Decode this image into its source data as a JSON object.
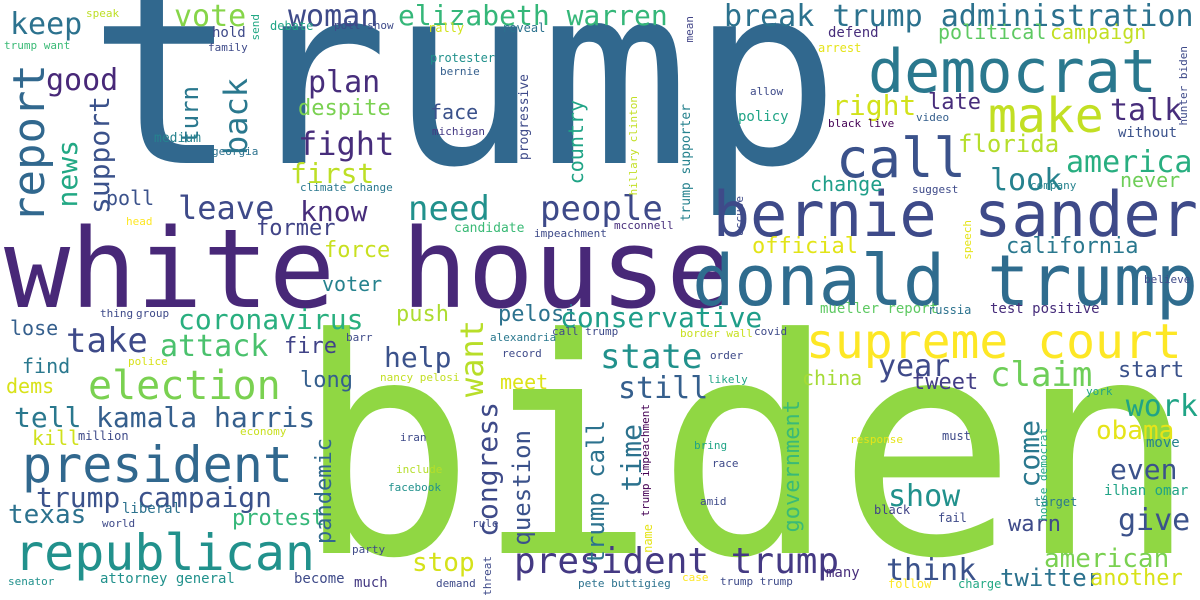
{
  "words": {
    "trump": {
      "text": "trump",
      "color": "#31688e"
    },
    "biden": {
      "text": "biden",
      "color": "#90d743"
    },
    "white_house": {
      "text": "white house",
      "color": "#482878"
    },
    "donald_trump": {
      "text": "donald trump",
      "color": "#2f6c8e"
    },
    "bernie_sander": {
      "text": "bernie sander",
      "color": "#3e4a89"
    },
    "democrat": {
      "text": "democrat",
      "color": "#2a788e"
    },
    "supreme_court": {
      "text": "supreme court",
      "color": "#fde725"
    },
    "republican": {
      "text": "republican",
      "color": "#21918c"
    },
    "president": {
      "text": "president",
      "color": "#31688e"
    },
    "call": {
      "text": "call",
      "color": "#3b528b"
    },
    "make": {
      "text": "make",
      "color": "#c2df23"
    },
    "election": {
      "text": "election",
      "color": "#7ad151"
    },
    "president_trump": {
      "text": "president trump",
      "color": "#443983"
    },
    "break": {
      "text": "break",
      "color": "#3b528b"
    },
    "trump_administration": {
      "text": "trump administration",
      "color": "#2c728e"
    },
    "elizabeth_warren": {
      "text": "elizabeth warren",
      "color": "#35b779"
    },
    "report": {
      "text": "report",
      "color": "#31688e"
    },
    "keep": {
      "text": "keep",
      "color": "#2c728e"
    },
    "woman": {
      "text": "woman",
      "color": "#3e4a89"
    },
    "vote": {
      "text": "vote",
      "color": "#86d549"
    },
    "good": {
      "text": "good",
      "color": "#482878"
    },
    "plan": {
      "text": "plan",
      "color": "#472d7b"
    },
    "back": {
      "text": "back",
      "color": "#2a788e"
    },
    "turn": {
      "text": "turn",
      "color": "#2a788e"
    },
    "news": {
      "text": "news",
      "color": "#22a884"
    },
    "support": {
      "text": "support",
      "color": "#3b528b"
    },
    "fight": {
      "text": "fight",
      "color": "#472d7b"
    },
    "first": {
      "text": "first",
      "color": "#bddf26"
    },
    "despite": {
      "text": "despite",
      "color": "#7ad151"
    },
    "right": {
      "text": "right",
      "color": "#d2e21b"
    },
    "late": {
      "text": "late",
      "color": "#472d7b"
    },
    "talk": {
      "text": "talk",
      "color": "#472d7b"
    },
    "florida": {
      "text": "florida",
      "color": "#b5de2b"
    },
    "america": {
      "text": "america",
      "color": "#28ae80"
    },
    "never": {
      "text": "never",
      "color": "#6ece58"
    },
    "look": {
      "text": "look",
      "color": "#26828e"
    },
    "change": {
      "text": "change",
      "color": "#1f9e89"
    },
    "poll": {
      "text": "poll",
      "color": "#3b528b"
    },
    "leave": {
      "text": "leave",
      "color": "#3e4a89"
    },
    "know": {
      "text": "know",
      "color": "#472d7b"
    },
    "need": {
      "text": "need",
      "color": "#21918c"
    },
    "people": {
      "text": "people",
      "color": "#3e4a89"
    },
    "former": {
      "text": "former",
      "color": "#414487"
    },
    "force": {
      "text": "force",
      "color": "#c8e020"
    },
    "official": {
      "text": "official",
      "color": "#e2e418"
    },
    "california": {
      "text": "california",
      "color": "#2a788e"
    },
    "voter": {
      "text": "voter",
      "color": "#26828e"
    },
    "coronavirus": {
      "text": "coronavirus",
      "color": "#29af7f"
    },
    "push": {
      "text": "push",
      "color": "#addc30"
    },
    "pelosi": {
      "text": "pelosi",
      "color": "#2c728e"
    },
    "conservative": {
      "text": "conservative",
      "color": "#1f9e89"
    },
    "take": {
      "text": "take",
      "color": "#3e4a89"
    },
    "attack": {
      "text": "attack",
      "color": "#4ac16d"
    },
    "fire": {
      "text": "fire",
      "color": "#404387"
    },
    "help": {
      "text": "help",
      "color": "#3b528b"
    },
    "want": {
      "text": "want",
      "color": "#b8de29"
    },
    "state": {
      "text": "state",
      "color": "#21918c"
    },
    "still": {
      "text": "still",
      "color": "#355f8d"
    },
    "year": {
      "text": "year",
      "color": "#3e4a89"
    },
    "claim": {
      "text": "claim",
      "color": "#6ece58"
    },
    "tweet": {
      "text": "tweet",
      "color": "#433e85"
    },
    "start": {
      "text": "start",
      "color": "#3b528b"
    },
    "work": {
      "text": "work",
      "color": "#20a486"
    },
    "obama": {
      "text": "obama",
      "color": "#e5e419"
    },
    "even": {
      "text": "even",
      "color": "#3b528b"
    },
    "kamala_harris": {
      "text": "kamala harris",
      "color": "#355f8d"
    },
    "tell": {
      "text": "tell",
      "color": "#2a788e"
    },
    "long": {
      "text": "long",
      "color": "#355f8d"
    },
    "trump_campaign": {
      "text": "trump campaign",
      "color": "#3b528b"
    },
    "texas": {
      "text": "texas",
      "color": "#2c728e"
    },
    "protest": {
      "text": "protest",
      "color": "#35b779"
    },
    "pandemic": {
      "text": "pandemic",
      "color": "#31688e"
    },
    "congress": {
      "text": "congress",
      "color": "#3e4a89"
    },
    "question": {
      "text": "question",
      "color": "#3b528b"
    },
    "trump_call": {
      "text": "trump call",
      "color": "#2c728e"
    },
    "time": {
      "text": "time",
      "color": "#2c728e"
    },
    "government": {
      "text": "government",
      "color": "#3aba76"
    },
    "show": {
      "text": "show",
      "color": "#21918c"
    },
    "think": {
      "text": "think",
      "color": "#3b528b"
    },
    "come": {
      "text": "come",
      "color": "#2a788e"
    },
    "give": {
      "text": "give",
      "color": "#3b528b"
    },
    "warn": {
      "text": "warn",
      "color": "#3e4a89"
    },
    "twitter": {
      "text": "twitter",
      "color": "#2c728e"
    },
    "american": {
      "text": "american",
      "color": "#7ad151"
    },
    "another": {
      "text": "another",
      "color": "#d8e219"
    },
    "stop": {
      "text": "stop",
      "color": "#d5e21a"
    },
    "meet": {
      "text": "meet",
      "color": "#dde318"
    },
    "china": {
      "text": "china",
      "color": "#a5db36"
    },
    "find": {
      "text": "find",
      "color": "#2a788e"
    },
    "dems": {
      "text": "dems",
      "color": "#d8e219"
    },
    "lose": {
      "text": "lose",
      "color": "#355f8d"
    },
    "kill": {
      "text": "kill",
      "color": "#d0e11c"
    },
    "million": {
      "text": "million",
      "color": "#3e4a89"
    },
    "political": {
      "text": "political",
      "color": "#5ec962"
    },
    "campaign": {
      "text": "campaign",
      "color": "#c2df23"
    },
    "defend": {
      "text": "defend",
      "color": "#472d7b"
    },
    "policy": {
      "text": "policy",
      "color": "#20a486"
    },
    "without": {
      "text": "without",
      "color": "#3b528b"
    },
    "face": {
      "text": "face",
      "color": "#3b528b"
    },
    "country": {
      "text": "country",
      "color": "#20a486"
    },
    "test_positive": {
      "text": "test positive",
      "color": "#472d7b"
    },
    "mueller_report": {
      "text": "mueller report",
      "color": "#5ec962"
    },
    "russia": {
      "text": "russia",
      "color": "#2c728e"
    },
    "liberal": {
      "text": "liberal",
      "color": "#2c728e"
    },
    "attorney_general": {
      "text": "attorney general",
      "color": "#21918c"
    },
    "become": {
      "text": "become",
      "color": "#3e4a89"
    },
    "much": {
      "text": "much",
      "color": "#443983"
    },
    "ilhan_omar": {
      "text": "ilhan omar",
      "color": "#20a486"
    },
    "move": {
      "text": "move",
      "color": "#26828e"
    },
    "must": {
      "text": "must",
      "color": "#3e4a89"
    },
    "fail": {
      "text": "fail",
      "color": "#3e4a89"
    },
    "black": {
      "text": "black",
      "color": "#404387"
    },
    "target": {
      "text": "target",
      "color": "#2a788e"
    },
    "many": {
      "text": "many",
      "color": "#472d7b"
    },
    "charge": {
      "text": "charge",
      "color": "#22a884"
    },
    "follow": {
      "text": "follow",
      "color": "#fde725"
    },
    "speak": {
      "text": "speak",
      "color": "#bddf26"
    },
    "send": {
      "text": "send",
      "color": "#22a884"
    },
    "hold": {
      "text": "hold",
      "color": "#3e4a89"
    },
    "family": {
      "text": "family",
      "color": "#3e4a89"
    },
    "debate": {
      "text": "debate",
      "color": "#20a486"
    },
    "poll_show": {
      "text": "poll show",
      "color": "#3e4a89"
    },
    "rally": {
      "text": "rally",
      "color": "#d2e21b"
    },
    "reveal": {
      "text": "reveal",
      "color": "#2c728e"
    },
    "mean": {
      "text": "mean",
      "color": "#414487"
    },
    "arrest": {
      "text": "arrest",
      "color": "#e5e419"
    },
    "protester": {
      "text": "protester",
      "color": "#21918c"
    },
    "bernie": {
      "text": "bernie",
      "color": "#355f8d"
    },
    "michigan": {
      "text": "michigan",
      "color": "#443983"
    },
    "progressive": {
      "text": "progressive",
      "color": "#3e4a89"
    },
    "hillary_clinton": {
      "text": "hillary clinton",
      "color": "#c2df23"
    },
    "trump_supporter": {
      "text": "trump supporter",
      "color": "#26828e"
    },
    "allow": {
      "text": "allow",
      "color": "#3e4a89"
    },
    "video": {
      "text": "video",
      "color": "#355f8d"
    },
    "black_live": {
      "text": "black live",
      "color": "#440154"
    },
    "hunter_biden": {
      "text": "hunter biden",
      "color": "#3e4a89"
    },
    "trump_want": {
      "text": "trump want",
      "color": "#3aba76"
    },
    "medium": {
      "text": "medium",
      "color": "#26828e"
    },
    "georgia": {
      "text": "georgia",
      "color": "#2c728e"
    },
    "climate_change": {
      "text": "climate change",
      "color": "#2a788e"
    },
    "head": {
      "text": "head",
      "color": "#fde725"
    },
    "candidate": {
      "text": "candidate",
      "color": "#3aba76"
    },
    "impeachment": {
      "text": "impeachment",
      "color": "#3e4a89"
    },
    "mcconnell": {
      "text": "mcconnell",
      "color": "#472d7b"
    },
    "accuse": {
      "text": "accuse",
      "color": "#3e4a89"
    },
    "suggest": {
      "text": "suggest",
      "color": "#3e4a89"
    },
    "company": {
      "text": "company",
      "color": "#26828e"
    },
    "speech": {
      "text": "speech",
      "color": "#e5e419"
    },
    "believe": {
      "text": "believe",
      "color": "#3e4a89"
    },
    "barr": {
      "text": "barr",
      "color": "#3e4a89"
    },
    "nancy_pelosi": {
      "text": "nancy pelosi",
      "color": "#c2df23"
    },
    "alexandria": {
      "text": "alexandria",
      "color": "#2a788e"
    },
    "call_trump": {
      "text": "call trump",
      "color": "#3e4a89"
    },
    "record": {
      "text": "record",
      "color": "#3e4a89"
    },
    "border_wall": {
      "text": "border wall",
      "color": "#c8e020"
    },
    "covid": {
      "text": "covid",
      "color": "#3e4a89"
    },
    "order": {
      "text": "order",
      "color": "#3e4a89"
    },
    "likely": {
      "text": "likely",
      "color": "#20a486"
    },
    "police": {
      "text": "police",
      "color": "#d8e219"
    },
    "economy": {
      "text": "economy",
      "color": "#c8e020"
    },
    "iran": {
      "text": "iran",
      "color": "#3e4a89"
    },
    "include": {
      "text": "include",
      "color": "#b5de2b"
    },
    "facebook": {
      "text": "facebook",
      "color": "#21918c"
    },
    "trump_impeachment": {
      "text": "trump impeachment",
      "color": "#440154"
    },
    "name": {
      "text": "name",
      "color": "#e5e419"
    },
    "bring": {
      "text": "bring",
      "color": "#20a486"
    },
    "race": {
      "text": "race",
      "color": "#3e4a89"
    },
    "amid": {
      "text": "amid",
      "color": "#3e4a89"
    },
    "response": {
      "text": "response",
      "color": "#e5e419"
    },
    "house_democrat": {
      "text": "house democrat",
      "color": "#20a486"
    },
    "world": {
      "text": "world",
      "color": "#3e4a89"
    },
    "rule": {
      "text": "rule",
      "color": "#3e4a89"
    },
    "party": {
      "text": "party",
      "color": "#3e4a89"
    },
    "threat": {
      "text": "threat",
      "color": "#3e4a89"
    },
    "demand": {
      "text": "demand",
      "color": "#3e4a89"
    },
    "pete_buttigieg": {
      "text": "pete buttigieg",
      "color": "#2c728e"
    },
    "case": {
      "text": "case",
      "color": "#fde725"
    },
    "trump_trump": {
      "text": "trump trump",
      "color": "#3e4a89"
    },
    "senator": {
      "text": "senator",
      "color": "#21918c"
    },
    "thing": {
      "text": "thing",
      "color": "#3e4a89"
    },
    "group": {
      "text": "group",
      "color": "#3e4a89"
    },
    "york": {
      "text": "york",
      "color": "#20a486"
    }
  }
}
